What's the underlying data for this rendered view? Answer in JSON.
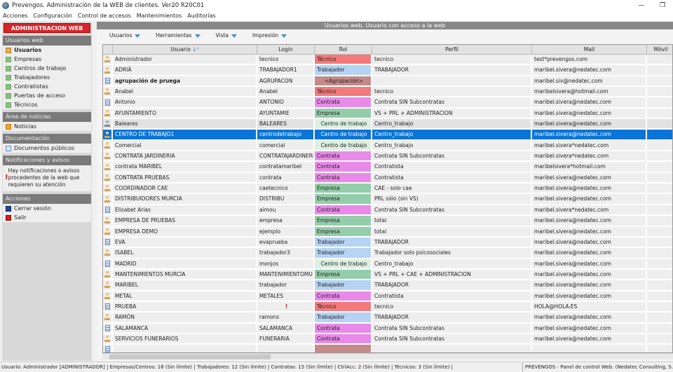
{
  "window": {
    "title": "Prevengos. Administración de la WEB de clientes. Ver20 R20C01",
    "minimize": "—",
    "restore": "❐"
  },
  "menu": [
    "Acciones",
    "Configuración",
    "Control de accesos",
    "Mantenimientos",
    "Auditorías"
  ],
  "sidebar": {
    "admin_button": "ADMINISTRACION WEB",
    "usuarios_web": {
      "title": "Usuarios web",
      "items": [
        "Usuarios",
        "Empresas",
        "Centros de trabajo",
        "Trabajadores",
        "Contratistas",
        "Puertas de acceso",
        "Técnicos"
      ]
    },
    "noticias": {
      "title": "Área de noticias",
      "items": [
        "Noticias"
      ]
    },
    "documentacion": {
      "title": "Documentación",
      "items": [
        "Documentos públicos"
      ]
    },
    "notificaciones": {
      "title": "Notificaciones y avisos",
      "text": "Hay notificaciones o avisos procedentes de la web que requieren su atención"
    },
    "acciones": {
      "title": "Acciones",
      "items": [
        "Cerrar sesión",
        "Salir"
      ]
    }
  },
  "main": {
    "title": "Usuarios web. Usuario con acceso a la web",
    "toolbar": [
      "Usuarios",
      "Herramientas",
      "Vista",
      "Impresión"
    ],
    "columns": [
      "Usuario",
      "Login",
      "Rol",
      "Perfil",
      "Mail",
      "Móvil"
    ],
    "role_colors": {
      "Técnico": "#f27a7a",
      "Trabajador": "#b6d3f4",
      "<Agrupación>": "#c48a8a",
      "Contrata": "#e88ae8",
      "Empresa": "#94cdaa",
      "Centro de trabajo": "#dcf0e2"
    },
    "rows": [
      {
        "icon": "person",
        "usuario": "Administrador",
        "login": "tecnico",
        "rol": "Técnico",
        "perfil": "tecnico",
        "mail": "test*prevengos.com"
      },
      {
        "icon": "person",
        "usuario": "ADRIÀ",
        "login": "TRABAJADOR1",
        "rol": "Trabajador",
        "perfil": "TRABAJADOR",
        "mail": "maribel.sivera@nedatec.com"
      },
      {
        "icon": "group",
        "usuario": "agrupación de pruega",
        "login": "AGRUPACON",
        "rol": "<Agrupación>",
        "perfil": "",
        "mail": "maribel.siv@nedatec.com",
        "bold": true
      },
      {
        "icon": "person",
        "usuario": "Anabel",
        "login": "Anabel",
        "rol": "Técnico",
        "perfil": "tecnico",
        "mail": "maribelsivera@hotmail.com"
      },
      {
        "icon": "group",
        "usuario": "Antonio",
        "login": "ANTONIO",
        "rol": "Contrata",
        "perfil": "Contrata SIN Subcontratas",
        "mail": "maribel.sivera@nedatec.com"
      },
      {
        "icon": "person",
        "usuario": "AYUNTAMIENTO",
        "login": "AYUNTAMIE",
        "rol": "Empresa",
        "perfil": "VS + PRL + ADMINISTRACION",
        "mail": "maribel.sivera@nedatec.com"
      },
      {
        "icon": "person-gray",
        "usuario": "Baleares",
        "login": "BALEARES",
        "rol": "Centro de trabajo",
        "perfil": "Centro_trabajo",
        "mail": "maribel.sivera@nedatec.com",
        "gray": true
      },
      {
        "icon": "person",
        "usuario": "CENTRO DE TRABAJO1",
        "login": "centrodetrabajo",
        "rol": "Centro de trabajo",
        "perfil": "Centro_trabajo",
        "mail": "maribel.sivera@nedatec.com",
        "selected": true
      },
      {
        "icon": "person",
        "usuario": "Comercial",
        "login": "comercial",
        "rol": "Centro de trabajo",
        "perfil": "Centro_trabajo",
        "mail": "maribel.sivera*nedatec.com"
      },
      {
        "icon": "person",
        "usuario": "CONTRATA JARDINERIA",
        "login": "CONTRATAJARDINERIA",
        "rol": "Contrata",
        "perfil": "Contrata SIN Subcontratas",
        "mail": "maribel.sivera*nedatec.com"
      },
      {
        "icon": "person",
        "usuario": "contrata MARIBEL",
        "login": "contratamaribel",
        "rol": "Contrata",
        "perfil": "Contratista",
        "mail": "maribelsivera*hotmail.com"
      },
      {
        "icon": "person",
        "usuario": "CONTRATA PRUEBAS",
        "login": "contrata",
        "rol": "Contrata",
        "perfil": "Contratista",
        "mail": "maribel.sivera@nedatec.com"
      },
      {
        "icon": "person",
        "usuario": "COORDINADOR CAE",
        "login": "caetecnico",
        "rol": "Empresa",
        "perfil": "CAE - solo cae",
        "mail": "maribel.sivera@nedatec.com"
      },
      {
        "icon": "person",
        "usuario": "DISTRIBUIDORES MURCIA",
        "login": "DISTRIBU",
        "rol": "Empresa",
        "perfil": "PRL sólo (sin VS)",
        "mail": "maribel.sivera@nedatec.com"
      },
      {
        "icon": "group",
        "usuario": "Elisabet Arias",
        "login": "aimou",
        "rol": "Contrata",
        "perfil": "Contrata SIN Subcontratas",
        "mail": "maribel.sivera*nedatec.com"
      },
      {
        "icon": "person",
        "usuario": "EMPRESA DE PRUEBAS",
        "login": "empresa",
        "rol": "Empresa",
        "perfil": "total",
        "mail": "maribel.sivera@nedatec.com"
      },
      {
        "icon": "person",
        "usuario": "EMPRESA DEMO",
        "login": "ejemplo",
        "rol": "Empresa",
        "perfil": "total",
        "mail": "maribel.sivera@nedatec.com"
      },
      {
        "icon": "group",
        "usuario": "EVA",
        "login": "evaprueba",
        "rol": "Trabajador",
        "perfil": "TRABAJADOR",
        "mail": "maribel.sivera@nedatec.com"
      },
      {
        "icon": "person",
        "usuario": "ISABEL",
        "login": "trabajador3",
        "rol": "Trabajador",
        "perfil": "Trabajador solo psicosociales",
        "mail": "maribel.sivera@nedatec.com"
      },
      {
        "icon": "group",
        "usuario": "MADRID",
        "login": "monjos",
        "rol": "Centro de trabajo",
        "perfil": "Centro_trabajo",
        "mail": "maribel.sivera@nedatec.com"
      },
      {
        "icon": "person",
        "usuario": "MANTENIMIENTOS MURCIA",
        "login": "MANTENIMIENTOMU",
        "rol": "Empresa",
        "perfil": "VS + PRL + CAE + ADMINISTRACION",
        "mail": "maribel.sivera@nedatec.com"
      },
      {
        "icon": "person",
        "usuario": "MARIBEL",
        "login": "trabajador",
        "rol": "Trabajador",
        "perfil": "TRABAJADOR",
        "mail": "maribel.sivera@nedatec.com"
      },
      {
        "icon": "person",
        "usuario": "METAL",
        "login": "METALES",
        "rol": "Contrata",
        "perfil": "Contratista",
        "mail": "maribel.sivera@nedatec.com"
      },
      {
        "icon": "group",
        "usuario": "PRUEBA",
        "login": "!",
        "rol": "Técnico",
        "perfil": "tecnico",
        "mail": "HOLA@HOLA.ES",
        "login_alert": true
      },
      {
        "icon": "person",
        "usuario": "RAMÓN",
        "login": "ramons",
        "rol": "Trabajador",
        "perfil": "TRABAJADOR",
        "mail": "maribel.sivera@nedatec.com"
      },
      {
        "icon": "group",
        "usuario": "SALAMANCA",
        "login": "SALAMANCA",
        "rol": "Contrata",
        "perfil": "Contrata SIN Subcontratas",
        "mail": "maribel.sivera@nedatec.com"
      },
      {
        "icon": "person",
        "usuario": "SERVICIOS FUNERARIOS",
        "login": "FUNERARIA",
        "rol": "Contrata",
        "perfil": "Contrata SIN Subcontratas",
        "mail": "maribel.sivera@nedatec.com"
      },
      {
        "icon": "group",
        "usuario": "",
        "login": "",
        "rol": "<Agrupación>",
        "perfil": "",
        "mail": "",
        "hide_rol": true
      }
    ]
  },
  "status": {
    "left": "Usuario: Administrador  [ADMINISTRADOR]  |  Empresas/Centros: 16 (Sin límite)  |  Trabajadores: 12 (Sin límite)  |  Contratas: 15 (Sin límite)  |  CtrlAcc: 2 (Sin límite)  |  Técnicos: 3 (Sin límite)  |",
    "right": "PREVENGOS - Panel de control Web. (Nedatec Consulting, S.L. 2000-20"
  }
}
